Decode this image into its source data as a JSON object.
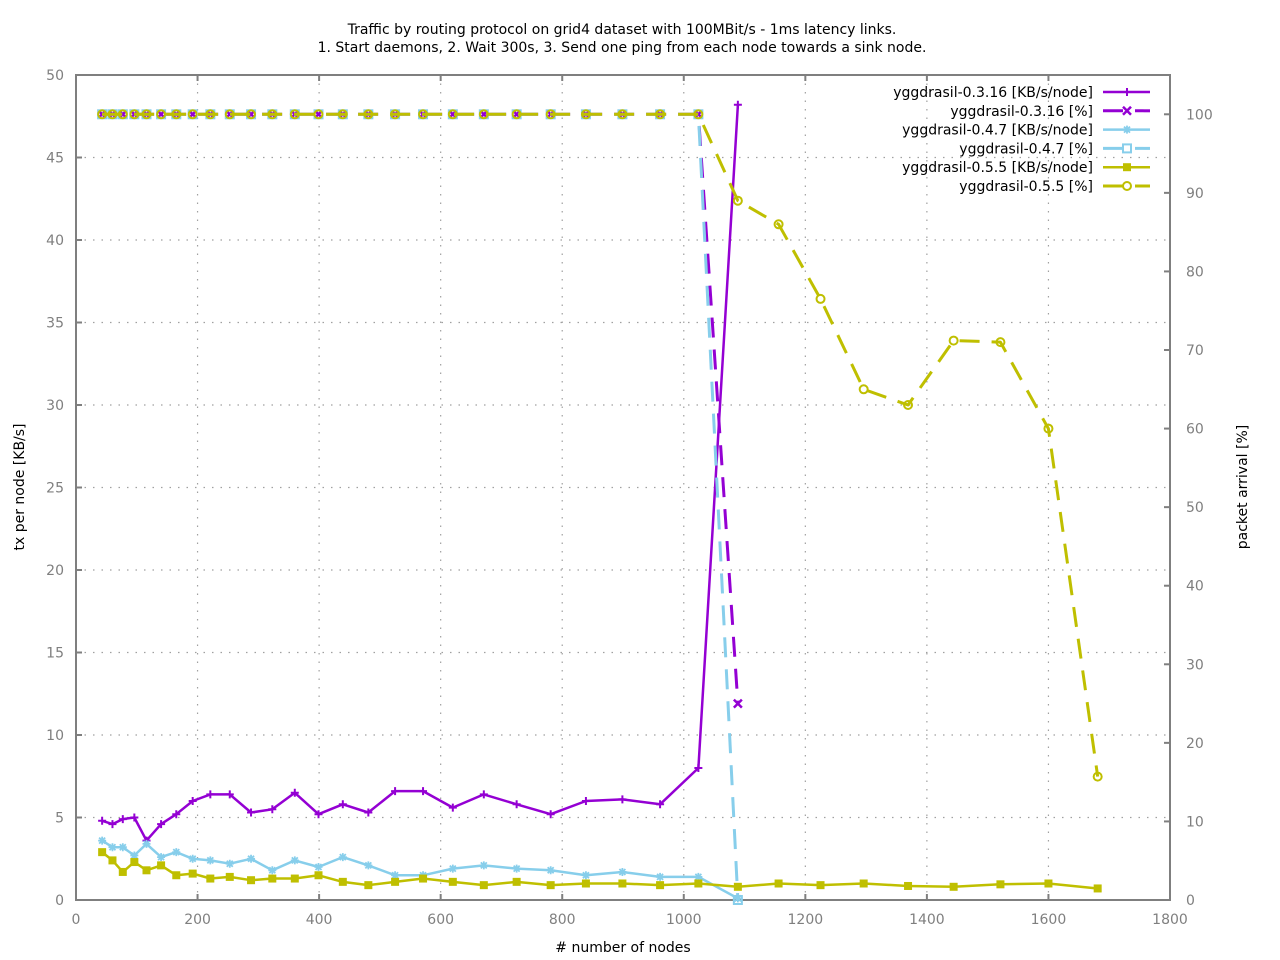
{
  "chart_data": {
    "type": "line",
    "title": [
      "Traffic by routing protocol on grid4 dataset with 100MBit/s - 1ms latency links.",
      "1. Start daemons, 2. Wait 300s, 3. Send one ping from each node towards a sink node."
    ],
    "xlabel": "# number of nodes",
    "ylabel": "tx per node [KB/s]",
    "y2label": "packet arrival [%]",
    "xlim": [
      0,
      1800
    ],
    "ylim": [
      0,
      50
    ],
    "y2lim": [
      0,
      105
    ],
    "xticks": [
      0,
      200,
      400,
      600,
      800,
      1000,
      1200,
      1400,
      1600,
      1800
    ],
    "yticks": [
      0,
      5,
      10,
      15,
      20,
      25,
      30,
      35,
      40,
      45,
      50
    ],
    "y2ticks": [
      0,
      10,
      20,
      30,
      40,
      50,
      60,
      70,
      80,
      90,
      100
    ],
    "grid": true,
    "legend_position": "top-right",
    "series": [
      {
        "name": "yggdrasil-0.3.16 [KB/s/node]",
        "axis": "y1",
        "color": "#9400d3",
        "dash": "solid",
        "marker": "plus",
        "x": [
          43,
          60,
          77,
          96,
          116,
          140,
          165,
          192,
          221,
          253,
          288,
          323,
          360,
          399,
          439,
          481,
          525,
          571,
          620,
          671,
          725,
          781,
          839,
          899,
          961,
          1024,
          1089
        ],
        "y": [
          4.8,
          4.6,
          4.9,
          5.0,
          3.6,
          4.6,
          5.2,
          6.0,
          6.4,
          6.4,
          5.3,
          5.5,
          6.5,
          5.2,
          5.8,
          5.3,
          6.6,
          6.6,
          5.6,
          6.4,
          5.8,
          5.2,
          6.0,
          6.1,
          5.8,
          8.0,
          48.2
        ]
      },
      {
        "name": "yggdrasil-0.3.16 [%]",
        "axis": "y2",
        "color": "#9400d3",
        "dash": "dashed",
        "marker": "cross",
        "x": [
          43,
          60,
          77,
          96,
          116,
          140,
          165,
          192,
          221,
          253,
          288,
          323,
          360,
          399,
          439,
          481,
          525,
          571,
          620,
          671,
          725,
          781,
          839,
          899,
          961,
          1024,
          1089
        ],
        "y": [
          100,
          100,
          100,
          100,
          100,
          100,
          100,
          100,
          100,
          100,
          100,
          100,
          100,
          100,
          100,
          100,
          100,
          100,
          100,
          100,
          100,
          100,
          100,
          100,
          100,
          100,
          25
        ]
      },
      {
        "name": "yggdrasil-0.4.7 [KB/s/node]",
        "axis": "y1",
        "color": "#87ceeb",
        "dash": "solid",
        "marker": "star",
        "x": [
          43,
          60,
          77,
          96,
          116,
          140,
          165,
          192,
          221,
          253,
          288,
          323,
          360,
          399,
          439,
          481,
          525,
          571,
          620,
          671,
          725,
          781,
          839,
          899,
          961,
          1024,
          1089
        ],
        "y": [
          3.6,
          3.2,
          3.2,
          2.7,
          3.4,
          2.6,
          2.9,
          2.5,
          2.4,
          2.2,
          2.5,
          1.8,
          2.4,
          2.0,
          2.6,
          2.1,
          1.5,
          1.5,
          1.9,
          2.1,
          1.9,
          1.8,
          1.5,
          1.7,
          1.4,
          1.4,
          0.1
        ]
      },
      {
        "name": "yggdrasil-0.4.7 [%]",
        "axis": "y2",
        "color": "#87ceeb",
        "dash": "dashed",
        "marker": "square-open",
        "x": [
          43,
          60,
          77,
          96,
          116,
          140,
          165,
          192,
          221,
          253,
          288,
          323,
          360,
          399,
          439,
          481,
          525,
          571,
          620,
          671,
          725,
          781,
          839,
          899,
          961,
          1024,
          1089
        ],
        "y": [
          100,
          100,
          100,
          100,
          100,
          100,
          100,
          100,
          100,
          100,
          100,
          100,
          100,
          100,
          100,
          100,
          100,
          100,
          100,
          100,
          100,
          100,
          100,
          100,
          100,
          100,
          0
        ]
      },
      {
        "name": "yggdrasil-0.5.5 [KB/s/node]",
        "axis": "y1",
        "color": "#bfbf00",
        "dash": "solid",
        "marker": "square",
        "x": [
          43,
          60,
          77,
          96,
          116,
          140,
          165,
          192,
          221,
          253,
          288,
          323,
          360,
          399,
          439,
          481,
          525,
          571,
          620,
          671,
          725,
          781,
          839,
          899,
          961,
          1024,
          1089,
          1156,
          1225,
          1296,
          1369,
          1444,
          1521,
          1600,
          1681
        ],
        "y": [
          2.9,
          2.4,
          1.7,
          2.3,
          1.8,
          2.1,
          1.5,
          1.6,
          1.3,
          1.4,
          1.2,
          1.3,
          1.3,
          1.5,
          1.1,
          0.9,
          1.1,
          1.3,
          1.1,
          0.9,
          1.1,
          0.9,
          1.0,
          1.0,
          0.9,
          1.0,
          0.8,
          1.0,
          0.9,
          1.0,
          0.85,
          0.8,
          0.95,
          1.0,
          0.7
        ]
      },
      {
        "name": "yggdrasil-0.5.5 [%]",
        "axis": "y2",
        "color": "#bfbf00",
        "dash": "dashed",
        "marker": "circle-open",
        "x": [
          43,
          60,
          77,
          96,
          116,
          140,
          165,
          192,
          221,
          253,
          288,
          323,
          360,
          399,
          439,
          481,
          525,
          571,
          620,
          671,
          725,
          781,
          839,
          899,
          961,
          1024,
          1089,
          1156,
          1225,
          1296,
          1369,
          1444,
          1521,
          1600,
          1681
        ],
        "y": [
          100,
          100,
          100,
          100,
          100,
          100,
          100,
          100,
          100,
          100,
          100,
          100,
          100,
          100,
          100,
          100,
          100,
          100,
          100,
          100,
          100,
          100,
          100,
          100,
          100,
          100,
          89,
          86,
          76.5,
          65,
          63,
          71.2,
          71,
          60,
          15.7
        ]
      }
    ]
  }
}
